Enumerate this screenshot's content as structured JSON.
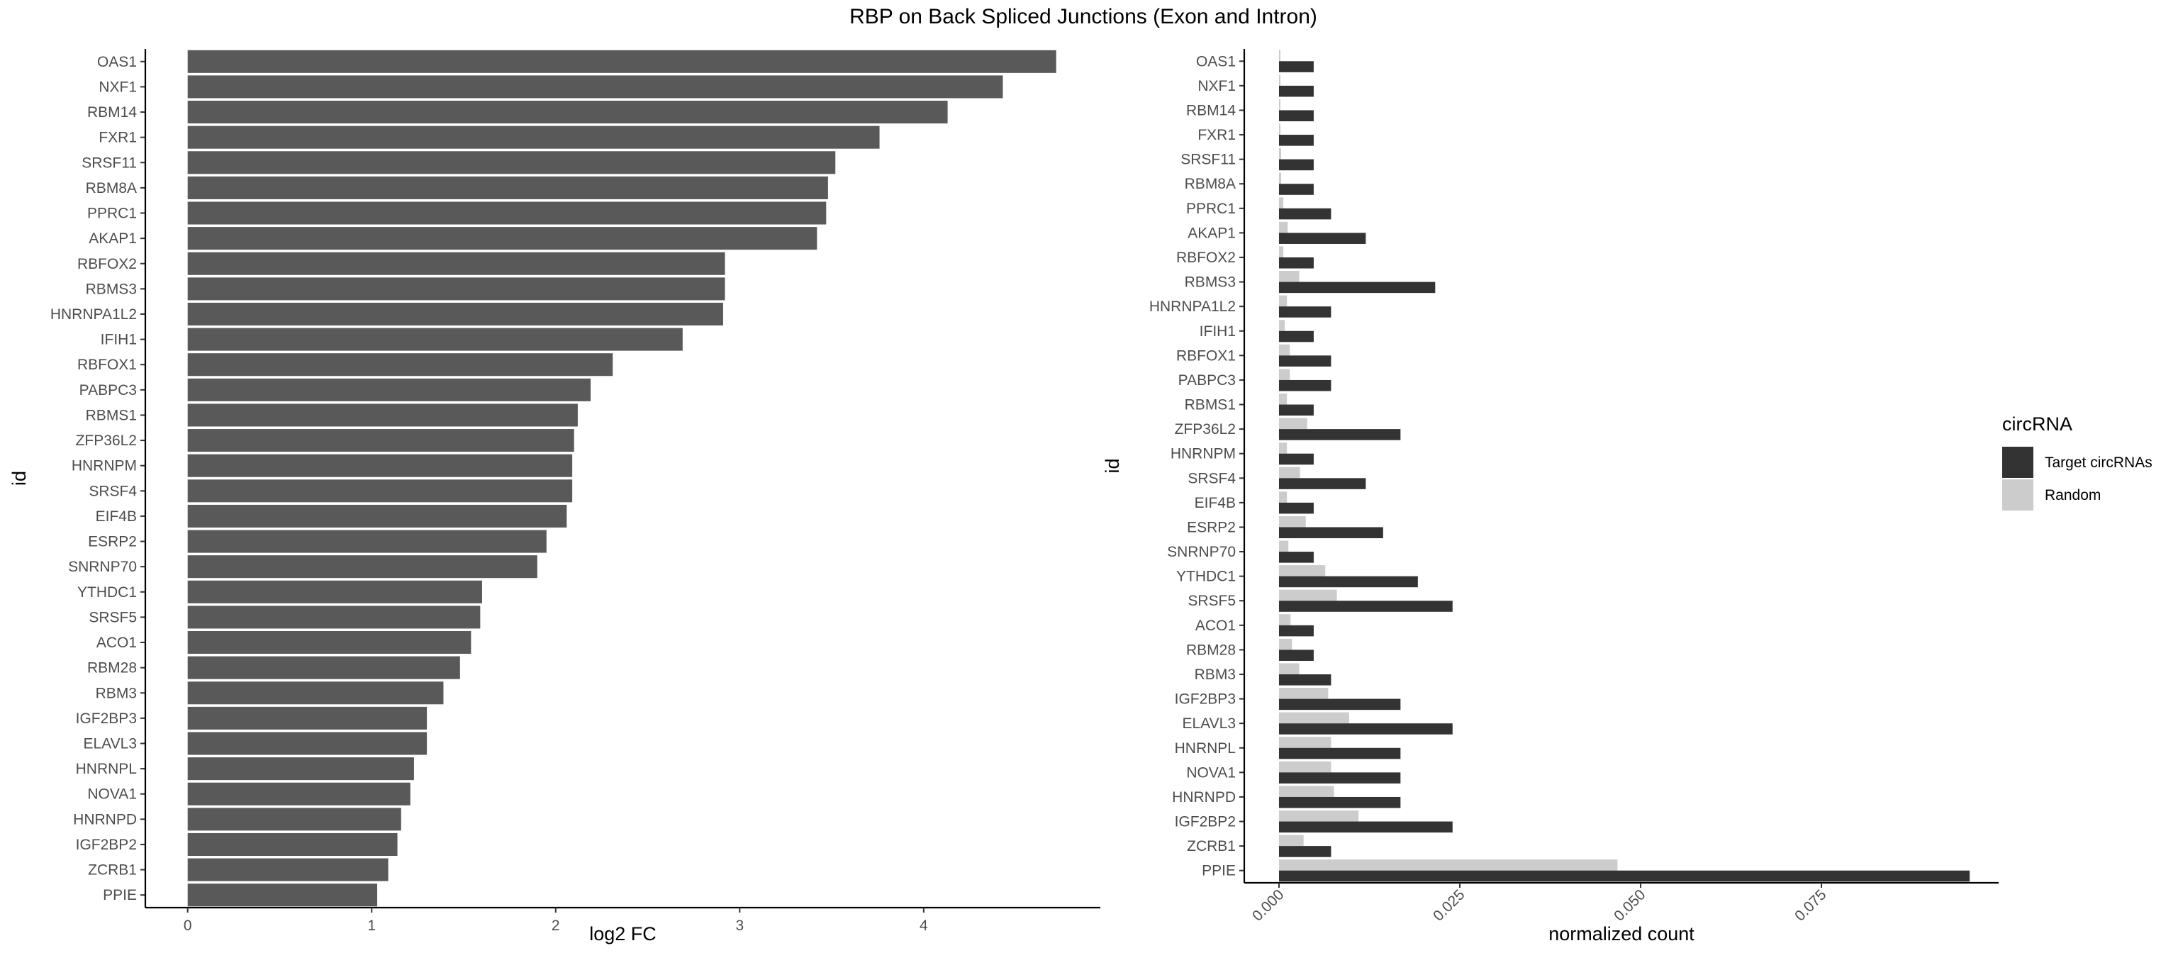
{
  "title": "RBP on Back Spliced Junctions (Exon and Intron)",
  "chart_data": [
    {
      "type": "bar",
      "orientation": "horizontal",
      "ylabel": "id",
      "xlabel": "log2 FC",
      "xlim": [
        -0.23,
        4.96
      ],
      "xticks": [
        "0",
        "1",
        "2",
        "3",
        "4"
      ],
      "categories": [
        "OAS1",
        "NXF1",
        "RBM14",
        "FXR1",
        "SRSF11",
        "RBM8A",
        "PPRC1",
        "AKAP1",
        "RBFOX2",
        "RBMS3",
        "HNRNPA1L2",
        "IFIH1",
        "RBFOX1",
        "PABPC3",
        "RBMS1",
        "ZFP36L2",
        "HNRNPM",
        "SRSF4",
        "EIF4B",
        "ESRP2",
        "SNRNP70",
        "YTHDC1",
        "SRSF5",
        "ACO1",
        "RBM28",
        "RBM3",
        "IGF2BP3",
        "ELAVL3",
        "HNRNPL",
        "NOVA1",
        "HNRNPD",
        "IGF2BP2",
        "ZCRB1",
        "PPIE"
      ],
      "values": [
        4.72,
        4.43,
        4.13,
        3.76,
        3.52,
        3.48,
        3.47,
        3.42,
        2.92,
        2.92,
        2.91,
        2.69,
        2.31,
        2.19,
        2.12,
        2.1,
        2.09,
        2.09,
        2.06,
        1.95,
        1.9,
        1.6,
        1.59,
        1.54,
        1.48,
        1.39,
        1.3,
        1.3,
        1.23,
        1.21,
        1.16,
        1.14,
        1.09,
        1.03
      ],
      "color": "#595959"
    },
    {
      "type": "bar",
      "orientation": "horizontal",
      "grouped": true,
      "ylabel": "id",
      "xlabel": "normalized count",
      "xlim": [
        -0.0048,
        0.0995
      ],
      "xticks": [
        "0.000",
        "0.025",
        "0.050",
        "0.075"
      ],
      "categories": [
        "OAS1",
        "NXF1",
        "RBM14",
        "FXR1",
        "SRSF11",
        "RBM8A",
        "PPRC1",
        "AKAP1",
        "RBFOX2",
        "RBMS3",
        "HNRNPA1L2",
        "IFIH1",
        "RBFOX1",
        "PABPC3",
        "RBMS1",
        "ZFP36L2",
        "HNRNPM",
        "SRSF4",
        "EIF4B",
        "ESRP2",
        "SNRNP70",
        "YTHDC1",
        "SRSF5",
        "ACO1",
        "RBM28",
        "RBM3",
        "IGF2BP3",
        "ELAVL3",
        "HNRNPL",
        "NOVA1",
        "HNRNPD",
        "IGF2BP2",
        "ZCRB1",
        "PPIE"
      ],
      "legend_title": "circRNA",
      "legend_position": "right",
      "series": [
        {
          "name": "Target circRNAs",
          "color": "#333333",
          "values": [
            0.0048,
            0.0048,
            0.0048,
            0.0048,
            0.0048,
            0.0048,
            0.0072,
            0.012,
            0.0048,
            0.0216,
            0.0072,
            0.0048,
            0.0072,
            0.0072,
            0.0048,
            0.0168,
            0.0048,
            0.012,
            0.0048,
            0.0144,
            0.0048,
            0.0192,
            0.024,
            0.0048,
            0.0048,
            0.0072,
            0.0168,
            0.024,
            0.0168,
            0.0168,
            0.0168,
            0.024,
            0.0072,
            0.0955
          ]
        },
        {
          "name": "Random",
          "color": "#cccccc",
          "values": [
            0.0002,
            0.0002,
            0.0002,
            0.0002,
            0.0003,
            0.0003,
            0.0006,
            0.0012,
            0.0006,
            0.0028,
            0.0011,
            0.0008,
            0.0015,
            0.0015,
            0.0011,
            0.0039,
            0.0011,
            0.0029,
            0.0011,
            0.0037,
            0.0013,
            0.0064,
            0.008,
            0.0016,
            0.0018,
            0.0028,
            0.0068,
            0.0097,
            0.0072,
            0.0072,
            0.0076,
            0.011,
            0.0034,
            0.0468
          ]
        }
      ]
    }
  ]
}
